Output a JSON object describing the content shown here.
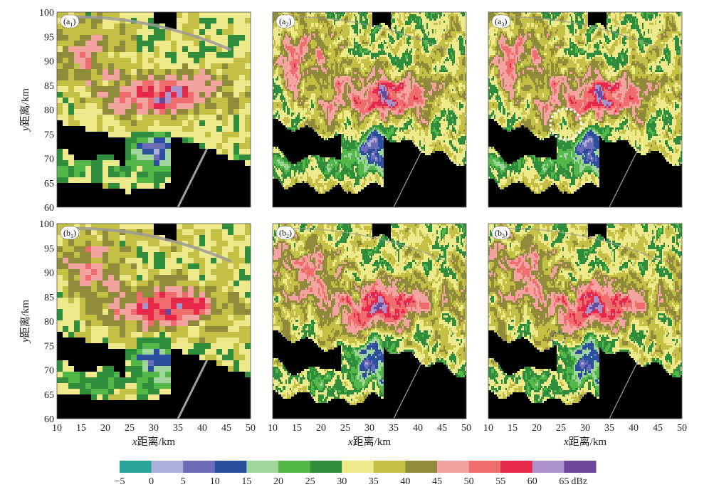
{
  "chart_data": {
    "type": "heatmap",
    "layout": "2 rows × 3 columns",
    "xlabel_prefix": "x",
    "xlabel": "距离/km",
    "ylabel_prefix": "y",
    "ylabel": "距离/km",
    "xlim": [
      10,
      50
    ],
    "ylim": [
      60,
      100
    ],
    "xticks": [
      "10",
      "15",
      "20",
      "25",
      "30",
      "35",
      "40",
      "45",
      "50"
    ],
    "yticks": [
      "100",
      "95",
      "90",
      "85",
      "80",
      "75",
      "70",
      "65",
      "60"
    ],
    "panels": [
      {
        "label": "a",
        "sub": "1",
        "row": 0,
        "col": 0,
        "resolution": "coarse"
      },
      {
        "label": "a",
        "sub": "2",
        "row": 0,
        "col": 1,
        "resolution": "fine"
      },
      {
        "label": "a",
        "sub": "3",
        "row": 0,
        "col": 2,
        "resolution": "fine",
        "annotation": {
          "type": "circle",
          "style": "white-dotted",
          "cx": 26,
          "cy": 77,
          "r": 3.2
        }
      },
      {
        "label": "b",
        "sub": "1",
        "row": 1,
        "col": 0,
        "resolution": "coarse"
      },
      {
        "label": "b",
        "sub": "2",
        "row": 1,
        "col": 1,
        "resolution": "fine"
      },
      {
        "label": "b",
        "sub": "3",
        "row": 1,
        "col": 2,
        "resolution": "fine",
        "annotation": {
          "type": "circle",
          "style": "blue-dotted",
          "cx": 24.5,
          "cy": 76.5,
          "r": 1.3
        }
      }
    ],
    "colorbar": {
      "unit": "dBz",
      "tick_labels": [
        "−5",
        "0",
        "5",
        "10",
        "15",
        "20",
        "25",
        "30",
        "35",
        "40",
        "45",
        "50",
        "55",
        "60",
        "65"
      ],
      "colors": [
        "#2aa398",
        "#adadd9",
        "#6c6cb8",
        "#2b4f9e",
        "#9fd49a",
        "#54b848",
        "#2e8c3c",
        "#eee98a",
        "#c4bf45",
        "#8f8b3a",
        "#f3a3a0",
        "#ef6d6c",
        "#e5284a",
        "#a993c9",
        "#6c489c"
      ]
    }
  }
}
